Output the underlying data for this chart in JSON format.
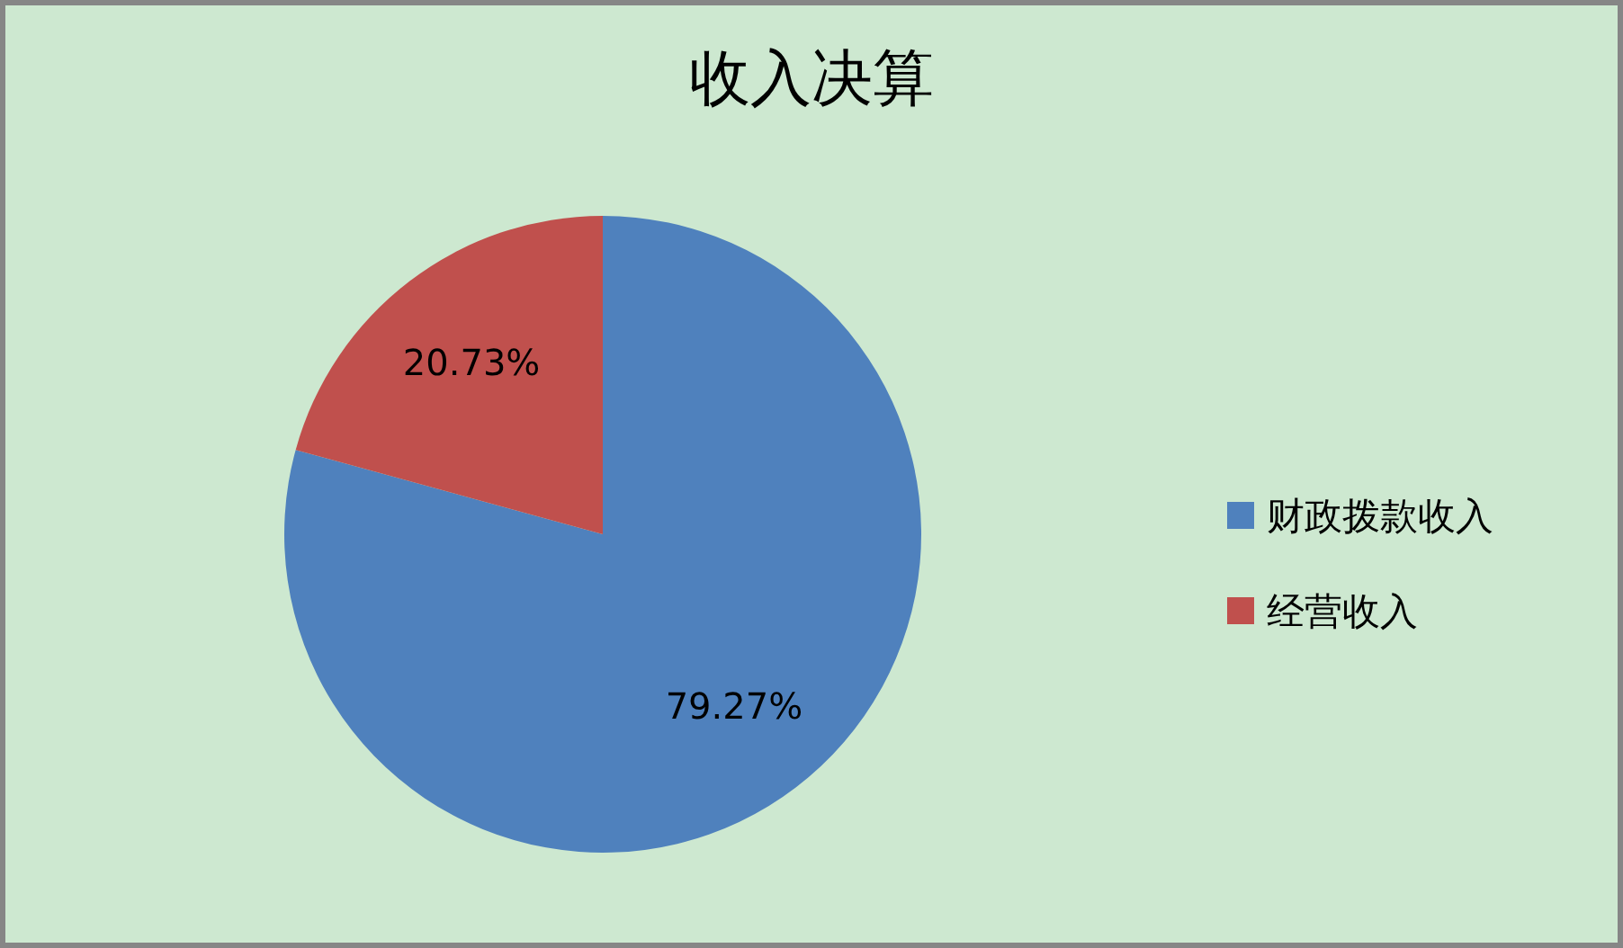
{
  "chart_data": {
    "type": "pie",
    "title": "收入决算",
    "categories": [
      "财政拨款收入",
      "经营收入"
    ],
    "values": [
      79.27,
      20.73
    ],
    "colors": [
      "#4f81bd",
      "#c0504d"
    ],
    "value_labels": [
      "79.27%",
      "20.73%"
    ],
    "legend": "right"
  }
}
